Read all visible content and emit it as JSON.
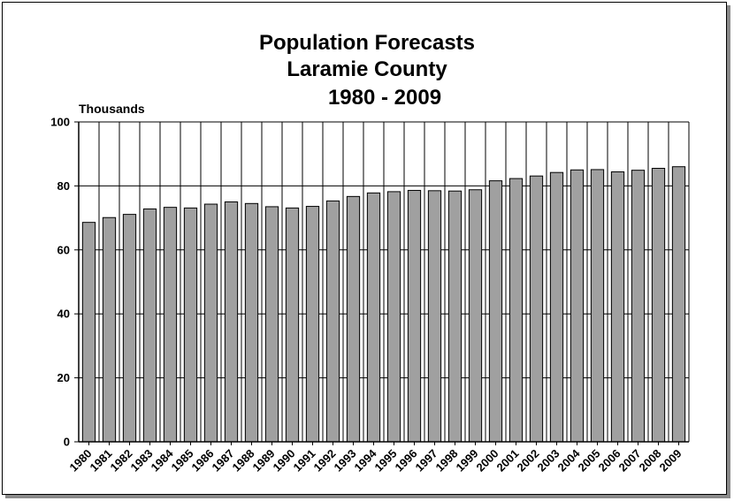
{
  "chart_data": {
    "type": "bar",
    "title_lines": [
      "Population Forecasts",
      "Laramie County",
      "1980 - 2009"
    ],
    "ylabel": "Thousands",
    "xlabel": "",
    "ylim": [
      0,
      100
    ],
    "yticks": [
      0,
      20,
      40,
      60,
      80,
      100
    ],
    "grid": true,
    "bar_color": "#a0a0a0",
    "categories": [
      "1980",
      "1981",
      "1982",
      "1983",
      "1984",
      "1985",
      "1986",
      "1987",
      "1988",
      "1989",
      "1990",
      "1991",
      "1992",
      "1993",
      "1994",
      "1995",
      "1996",
      "1997",
      "1998",
      "1999",
      "2000",
      "2001",
      "2002",
      "2003",
      "2004",
      "2005",
      "2006",
      "2007",
      "2008",
      "2009"
    ],
    "values": [
      68.6,
      70.1,
      71.1,
      72.8,
      73.3,
      73.1,
      74.3,
      75.0,
      74.5,
      73.5,
      73.1,
      73.6,
      75.3,
      76.7,
      77.8,
      78.2,
      78.6,
      78.5,
      78.4,
      78.8,
      81.6,
      82.3,
      83.1,
      84.2,
      85.0,
      85.1,
      84.4,
      84.9,
      85.5,
      86.0
    ]
  }
}
